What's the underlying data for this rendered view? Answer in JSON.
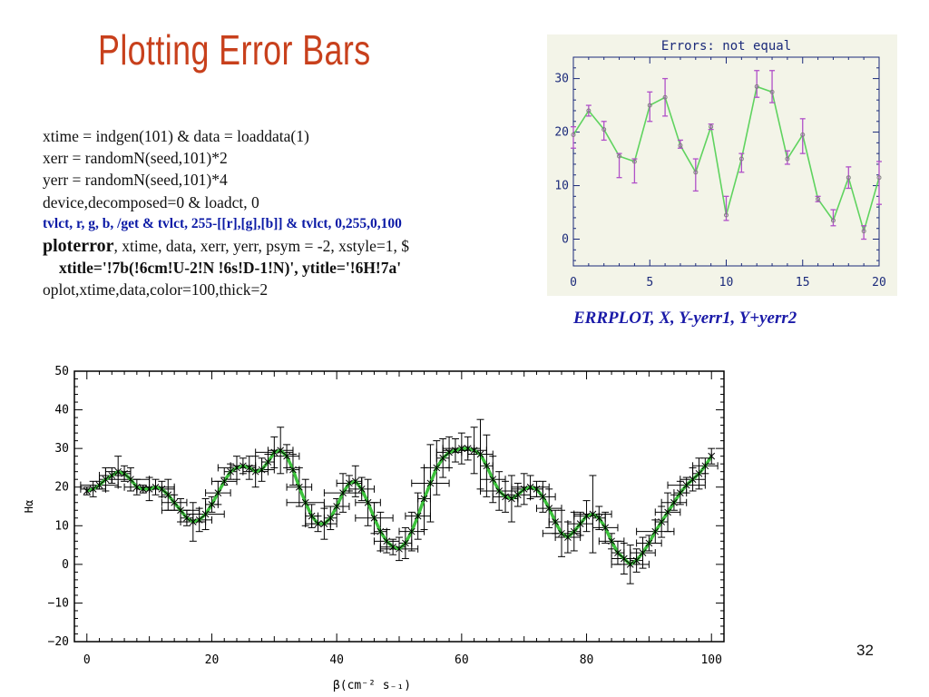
{
  "slide": {
    "title": "Plotting Error Bars",
    "code_lines": [
      "xtime = indgen(101) &  data = loaddata(1)",
      "xerr = randomN(seed,101)*2",
      "yerr = randomN(seed,101)*4",
      "device,decomposed=0  &  loadct, 0"
    ],
    "tvlct_line": "tvlct, r, g, b, /get & tvlct, 255-[[r],[g],[b]] & tvlct, 0,255,0,100",
    "ploterror_keyword": "ploterror",
    "ploterror_rest": ", xtime, data, xerr, yerr, psym = -2, xstyle=1, $",
    "xtitle_line": "xtitle='!7b(!6cm!U-2!N !6s!D-1!N)', ytitle='!6H!7a'",
    "oplot_line": "oplot,xtime,data,color=100,thick=2",
    "caption": "ERRPLOT, X, Y-yerr1, Y+yerr2",
    "page_number": "32"
  },
  "chart_data": [
    {
      "type": "line",
      "title": "Errors: not equal",
      "xlim": [
        0,
        20
      ],
      "ylim": [
        -5,
        34
      ],
      "x_ticks": [
        0,
        5,
        10,
        15,
        20
      ],
      "y_ticks": [
        0,
        10,
        20,
        30
      ],
      "line_color": "#5fd35f",
      "errorbar_color": "#b050c8",
      "points": [
        {
          "x": 0,
          "y": 19.5,
          "lo": 17,
          "hi": 21
        },
        {
          "x": 1,
          "y": 24,
          "lo": 23,
          "hi": 25
        },
        {
          "x": 2,
          "y": 20.5,
          "lo": 18.5,
          "hi": 22
        },
        {
          "x": 3,
          "y": 15.5,
          "lo": 11.5,
          "hi": 16
        },
        {
          "x": 4,
          "y": 14.5,
          "lo": 10.5,
          "hi": 15
        },
        {
          "x": 5,
          "y": 25,
          "lo": 22,
          "hi": 27.5
        },
        {
          "x": 6,
          "y": 26.5,
          "lo": 23,
          "hi": 30
        },
        {
          "x": 7,
          "y": 17.5,
          "lo": 17,
          "hi": 18.5
        },
        {
          "x": 8,
          "y": 12.5,
          "lo": 9,
          "hi": 15
        },
        {
          "x": 9,
          "y": 21,
          "lo": 20.5,
          "hi": 21.5
        },
        {
          "x": 10,
          "y": 4.5,
          "lo": 3.5,
          "hi": 8
        },
        {
          "x": 11,
          "y": 15,
          "lo": 12.5,
          "hi": 16
        },
        {
          "x": 12,
          "y": 28.5,
          "lo": 26.5,
          "hi": 31.5
        },
        {
          "x": 13,
          "y": 27.5,
          "lo": 25.5,
          "hi": 31.5
        },
        {
          "x": 14,
          "y": 15,
          "lo": 14,
          "hi": 16.5
        },
        {
          "x": 15,
          "y": 19.5,
          "lo": 16,
          "hi": 22.5
        },
        {
          "x": 16,
          "y": 7.5,
          "lo": 7,
          "hi": 8
        },
        {
          "x": 17,
          "y": 3.5,
          "lo": 2.5,
          "hi": 5.5
        },
        {
          "x": 18,
          "y": 11.5,
          "lo": 9.5,
          "hi": 13.5
        },
        {
          "x": 19,
          "y": 1.5,
          "lo": 0,
          "hi": 2.5
        },
        {
          "x": 20,
          "y": 11.5,
          "lo": 6.5,
          "hi": 14.5
        }
      ]
    },
    {
      "type": "line",
      "xlabel": "β(cm⁻² s₋₁)",
      "ylabel": "Hα",
      "xlim": [
        -2,
        102
      ],
      "ylim": [
        -20,
        50
      ],
      "x_ticks": [
        0,
        20,
        40,
        60,
        80,
        100
      ],
      "y_ticks": [
        -20,
        -10,
        0,
        10,
        20,
        30,
        40,
        50
      ],
      "line_color": "#3cc43c",
      "errorbar_color": "#000000",
      "x": [
        0,
        1,
        2,
        3,
        4,
        5,
        6,
        7,
        8,
        9,
        10,
        11,
        12,
        13,
        14,
        15,
        16,
        17,
        18,
        19,
        20,
        21,
        22,
        23,
        24,
        25,
        26,
        27,
        28,
        29,
        30,
        31,
        32,
        33,
        34,
        35,
        36,
        37,
        38,
        39,
        40,
        41,
        42,
        43,
        44,
        45,
        46,
        47,
        48,
        49,
        50,
        51,
        52,
        53,
        54,
        55,
        56,
        57,
        58,
        59,
        60,
        61,
        62,
        63,
        64,
        65,
        66,
        67,
        68,
        69,
        70,
        71,
        72,
        73,
        74,
        75,
        76,
        77,
        78,
        79,
        80,
        81,
        82,
        83,
        84,
        85,
        86,
        87,
        88,
        89,
        90,
        91,
        92,
        93,
        94,
        95,
        96,
        97,
        98,
        99,
        100
      ],
      "y": [
        19,
        19.5,
        20.5,
        22,
        23,
        24,
        23.5,
        22,
        20,
        19.5,
        19.5,
        20,
        19.5,
        18,
        16,
        14,
        12,
        11,
        11.5,
        13,
        15.5,
        18.5,
        21.5,
        24,
        25,
        25.5,
        25,
        24,
        24.5,
        26.5,
        29,
        29.5,
        28,
        24.5,
        20,
        16,
        12.5,
        10.5,
        10.5,
        12,
        15,
        18.5,
        21,
        21.5,
        19.5,
        16,
        12,
        8.5,
        6,
        4.5,
        4,
        5.5,
        8.5,
        12.5,
        17,
        21,
        25,
        27.5,
        29,
        29.5,
        30,
        30,
        29.5,
        28.5,
        25.5,
        22,
        19,
        17.5,
        17,
        18,
        19.5,
        20,
        19.5,
        17.5,
        14.5,
        11,
        8,
        7,
        8.5,
        10.5,
        12.5,
        13,
        12,
        9.5,
        6,
        3,
        1.5,
        0,
        1,
        3,
        5.5,
        8.5,
        11,
        13.5,
        16,
        18.5,
        20.5,
        22,
        23.5,
        25.5,
        28
      ],
      "xerr": [
        0,
        2,
        3,
        1,
        2,
        2,
        1,
        3,
        2,
        1,
        2,
        3,
        2,
        1,
        2,
        3,
        1,
        2,
        2,
        3,
        1,
        2,
        2,
        1,
        3,
        2,
        1,
        2,
        2,
        1,
        3,
        2,
        2,
        1,
        2,
        3,
        1,
        2,
        2,
        1,
        2,
        3,
        2,
        1,
        2,
        2,
        3,
        1,
        2,
        2,
        3,
        1,
        2,
        2,
        1,
        3,
        2,
        1,
        2,
        2,
        3,
        1,
        2,
        2,
        1,
        2,
        3,
        2,
        1,
        2,
        2,
        3,
        1,
        2,
        2,
        1,
        3,
        2,
        1,
        2,
        2,
        3,
        1,
        2,
        2,
        1,
        2,
        3,
        1,
        2,
        2,
        3,
        1,
        2,
        2,
        1,
        3,
        2,
        1,
        2,
        0
      ],
      "yerr": [
        1,
        2,
        1,
        3,
        2,
        4,
        2,
        3,
        2,
        1,
        3,
        2,
        2,
        4,
        2,
        3,
        2,
        5,
        3,
        4,
        2,
        3,
        1,
        2,
        3,
        2,
        3,
        4,
        3,
        2,
        4,
        6,
        3,
        4,
        5,
        6,
        3,
        2,
        4,
        3,
        2,
        5,
        2,
        4,
        3,
        6,
        4,
        5,
        3,
        2,
        3,
        4,
        5,
        6,
        8,
        10,
        7,
        5,
        4,
        3,
        4,
        3,
        6,
        9,
        8,
        6,
        5,
        4,
        6,
        3,
        4,
        3,
        2,
        4,
        5,
        3,
        6,
        4,
        5,
        3,
        4,
        10,
        3,
        4,
        2,
        3,
        4,
        5,
        3,
        4,
        2,
        3,
        4,
        5,
        2,
        3,
        2,
        3,
        4,
        2,
        2
      ]
    }
  ]
}
